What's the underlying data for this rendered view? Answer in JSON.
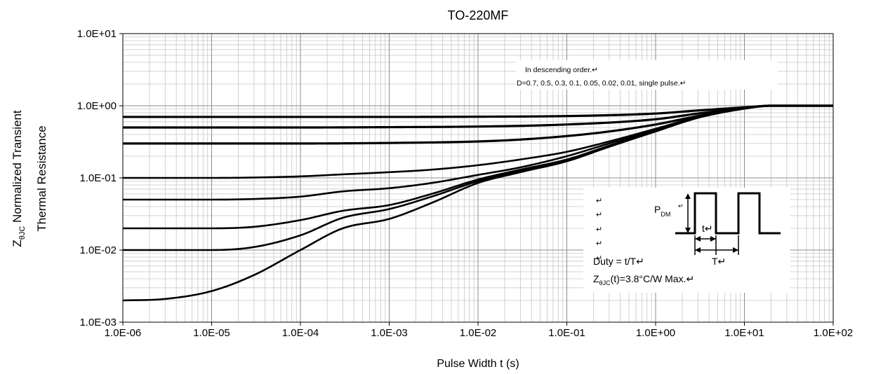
{
  "chart_data": {
    "type": "line",
    "title": "TO-220MF",
    "xlabel": "Pulse Width t (s)",
    "ylabel": {
      "line1": "Normalized Transient",
      "line2": "Thermal Resistance",
      "symbol_main": "Z",
      "symbol_sub": "θJC"
    },
    "xscale": "log",
    "yscale": "log",
    "xlim": [
      1e-06,
      100
    ],
    "ylim": [
      0.001,
      10
    ],
    "grid": true,
    "x_ticks": [
      "1.0E-06",
      "1.0E-05",
      "1.0E-04",
      "1.0E-03",
      "1.0E-02",
      "1.0E-01",
      "1.0E+00",
      "1.0E+01",
      "1.0E+02"
    ],
    "y_ticks": [
      "1.0E-03",
      "1.0E-02",
      "1.0E-01",
      "1.0E+00",
      "1.0E+01"
    ],
    "series": [
      {
        "x": [
          1e-06,
          1e-05,
          0.0001,
          0.001,
          0.01,
          0.1,
          1,
          3,
          10,
          20,
          100
        ],
        "values": [
          0.7,
          0.7,
          0.7,
          0.7,
          0.705,
          0.72,
          0.78,
          0.86,
          0.95,
          1.0,
          1.0
        ]
      },
      {
        "x": [
          1e-06,
          1e-05,
          0.0001,
          0.001,
          0.01,
          0.1,
          1,
          3,
          10,
          20,
          100
        ],
        "values": [
          0.5,
          0.5,
          0.5,
          0.505,
          0.515,
          0.55,
          0.65,
          0.78,
          0.93,
          1.0,
          1.0
        ]
      },
      {
        "x": [
          1e-06,
          1e-05,
          0.0001,
          0.001,
          0.01,
          0.03,
          0.1,
          0.3,
          1,
          3,
          10,
          20,
          100
        ],
        "values": [
          0.3,
          0.3,
          0.3,
          0.305,
          0.32,
          0.34,
          0.38,
          0.44,
          0.55,
          0.72,
          0.92,
          1.0,
          1.0
        ]
      },
      {
        "x": [
          1e-06,
          1e-05,
          0.0001,
          0.0003,
          0.001,
          0.003,
          0.01,
          0.03,
          0.1,
          0.3,
          1,
          3,
          10,
          20,
          100
        ],
        "values": [
          0.1,
          0.1,
          0.105,
          0.112,
          0.12,
          0.13,
          0.15,
          0.18,
          0.23,
          0.32,
          0.48,
          0.7,
          0.93,
          1.0,
          1.0
        ]
      },
      {
        "x": [
          1e-06,
          1e-05,
          3e-05,
          0.0001,
          0.0003,
          0.001,
          0.003,
          0.01,
          0.03,
          0.1,
          0.3,
          1,
          3,
          10,
          20,
          100
        ],
        "values": [
          0.05,
          0.05,
          0.051,
          0.055,
          0.065,
          0.072,
          0.085,
          0.11,
          0.14,
          0.2,
          0.3,
          0.46,
          0.7,
          0.92,
          1.0,
          1.0
        ]
      },
      {
        "x": [
          1e-06,
          1e-05,
          3e-05,
          0.0001,
          0.0003,
          0.001,
          0.003,
          0.01,
          0.03,
          0.1,
          0.3,
          1,
          3,
          10,
          20,
          100
        ],
        "values": [
          0.02,
          0.02,
          0.021,
          0.026,
          0.035,
          0.042,
          0.06,
          0.095,
          0.13,
          0.18,
          0.28,
          0.45,
          0.69,
          0.92,
          1.0,
          1.0
        ]
      },
      {
        "x": [
          1e-06,
          1e-05,
          3e-05,
          0.0001,
          0.0003,
          0.001,
          0.003,
          0.01,
          0.03,
          0.1,
          0.3,
          1,
          3,
          10,
          20,
          100
        ],
        "values": [
          0.01,
          0.01,
          0.011,
          0.016,
          0.028,
          0.037,
          0.055,
          0.09,
          0.125,
          0.175,
          0.275,
          0.445,
          0.69,
          0.92,
          1.0,
          1.0
        ]
      },
      {
        "x": [
          1e-06,
          3e-06,
          1e-05,
          3e-05,
          0.0001,
          0.0003,
          0.001,
          0.003,
          0.01,
          0.03,
          0.1,
          0.3,
          1,
          3,
          10,
          20,
          100
        ],
        "values": [
          0.002,
          0.0021,
          0.0027,
          0.0045,
          0.01,
          0.02,
          0.027,
          0.045,
          0.085,
          0.12,
          0.17,
          0.27,
          0.44,
          0.68,
          0.91,
          1.0,
          1.0
        ]
      }
    ],
    "legend_note": {
      "line1": "In descending order.↵",
      "line2": "D=0.7,  0.5,  0.3,  0.1,  0.05,  0.02,  0.01,  single pulse.↵"
    },
    "inset": {
      "return_marks": [
        "↵",
        "↵",
        "↵",
        "↵",
        "↵"
      ],
      "pdm_main": "P",
      "pdm_sub": "DM",
      "pdm_mark": "↵",
      "t_label": "t↵",
      "T_label": "T↵",
      "duty": "Duty = t/T↵",
      "z_main": "Z",
      "z_sub": "θJC",
      "z_rest": "(t)=3.8°C/W Max.↵"
    }
  }
}
